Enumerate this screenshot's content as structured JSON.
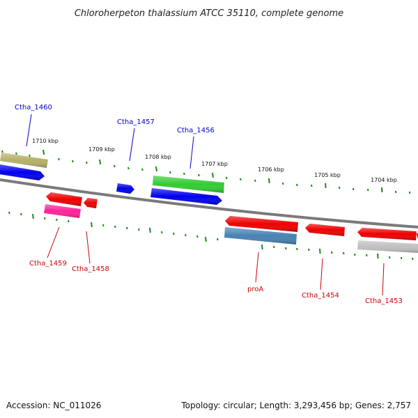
{
  "title": "Chloroherpeton thalassium ATCC 35110, complete genome",
  "footer": {
    "accession": "Accession: NC_011026",
    "summary": "Topology: circular; Length: 3,293,456 bp; Genes: 2,757"
  },
  "colors": {
    "backbone": "#808080",
    "tick": "#1a8a1a",
    "label_upper": "#0000cc",
    "label_lower": "#cc0000"
  },
  "kbp_labels": [
    "1710 kbp",
    "1709 kbp",
    "1708 kbp",
    "1707 kbp",
    "1706 kbp",
    "1705 kbp",
    "1704 kbp"
  ],
  "genes": [
    {
      "label": "Ctha_1460",
      "color": "#b5b06a",
      "strand": "upper"
    },
    {
      "label": "",
      "color": "#0000ee",
      "strand": "upper"
    },
    {
      "label": "",
      "color": "#0000ee",
      "strand": "upper"
    },
    {
      "label": "Ctha_1457",
      "color": "#0000ee",
      "strand": "upper"
    },
    {
      "label": "Ctha_1456",
      "color": "#33cc33",
      "strand": "upper"
    },
    {
      "label": "Ctha_1459",
      "color": "#ee0000",
      "strand": "lower"
    },
    {
      "label": "",
      "color": "#ff2299",
      "strand": "lower"
    },
    {
      "label": "Ctha_1458",
      "color": "#ee0000",
      "strand": "lower"
    },
    {
      "label": "proA",
      "color": "#ee0000",
      "strand": "lower"
    },
    {
      "label": "",
      "color": "#4682b4",
      "strand": "lower"
    },
    {
      "label": "Ctha_1454",
      "color": "#ee0000",
      "strand": "lower"
    },
    {
      "label": "Ctha_1453",
      "color": "#ee0000",
      "strand": "lower"
    },
    {
      "label": "",
      "color": "#c0c0c0",
      "strand": "lower"
    }
  ]
}
